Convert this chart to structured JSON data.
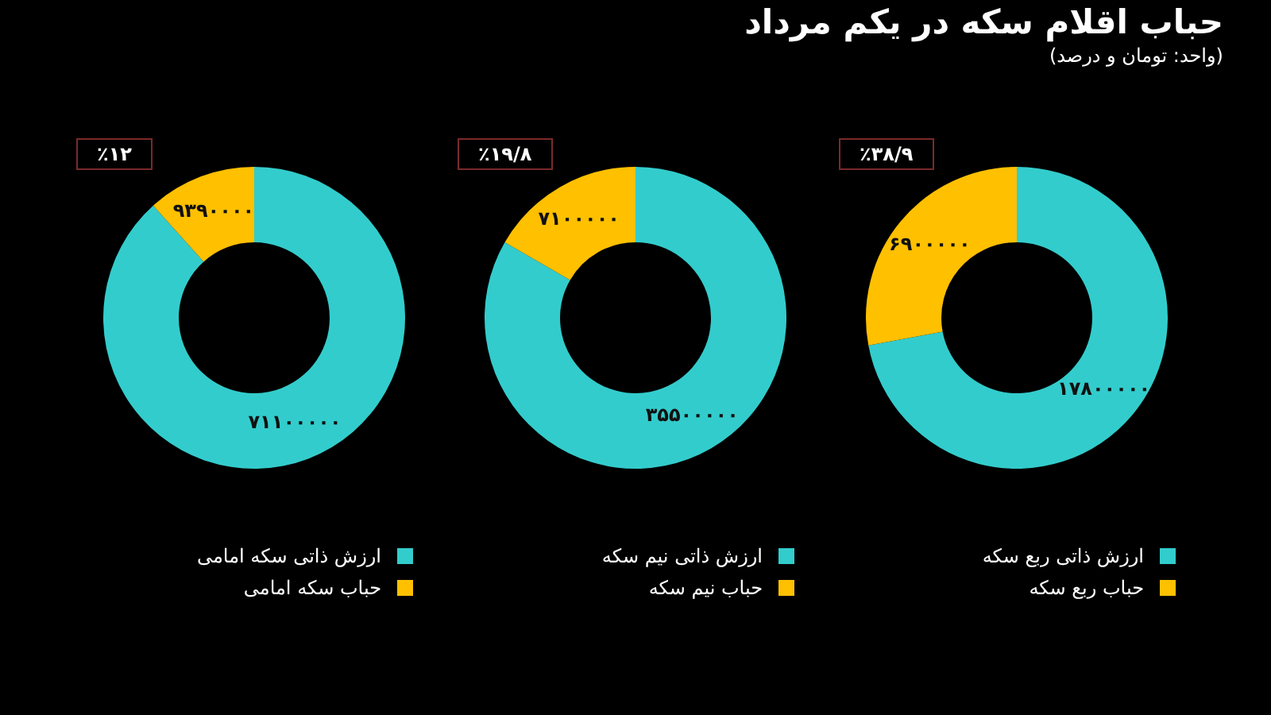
{
  "chart_data": [
    {
      "type": "donut",
      "title": "حباب اقلام سکه در یکم مرداد",
      "subtitle": "(واحد: تومان و درصد)",
      "categories": [
        "ارزش ذاتی ربع سکه",
        "حباب ربع سکه"
      ],
      "values": [
        17800000,
        6900000
      ],
      "value_labels": [
        "۱۷۸۰۰۰۰۰",
        "۶۹۰۰۰۰۰"
      ],
      "colors": [
        "#33cccc",
        "#ffc000"
      ],
      "annotations": [
        "٪۳۸/۹"
      ],
      "legend": "bottom"
    },
    {
      "type": "donut",
      "categories": [
        "ارزش ذاتی نیم سکه",
        "حباب نیم سکه"
      ],
      "values": [
        35500000,
        7100000
      ],
      "value_labels": [
        "۳۵۵۰۰۰۰۰",
        "۷۱۰۰۰۰۰"
      ],
      "colors": [
        "#33cccc",
        "#ffc000"
      ],
      "annotations": [
        "٪۱۹/۸"
      ],
      "legend": "bottom"
    },
    {
      "type": "donut",
      "categories": [
        "ارزش ذاتی سکه امامی",
        "حباب سکه امامی"
      ],
      "values": [
        71100000,
        9390000
      ],
      "value_labels": [
        "۷۱۱۰۰۰۰۰",
        "۹۳۹۰۰۰۰"
      ],
      "colors": [
        "#33cccc",
        "#ffc000"
      ],
      "annotations": [
        "٪۱۲"
      ],
      "legend": "bottom"
    }
  ]
}
